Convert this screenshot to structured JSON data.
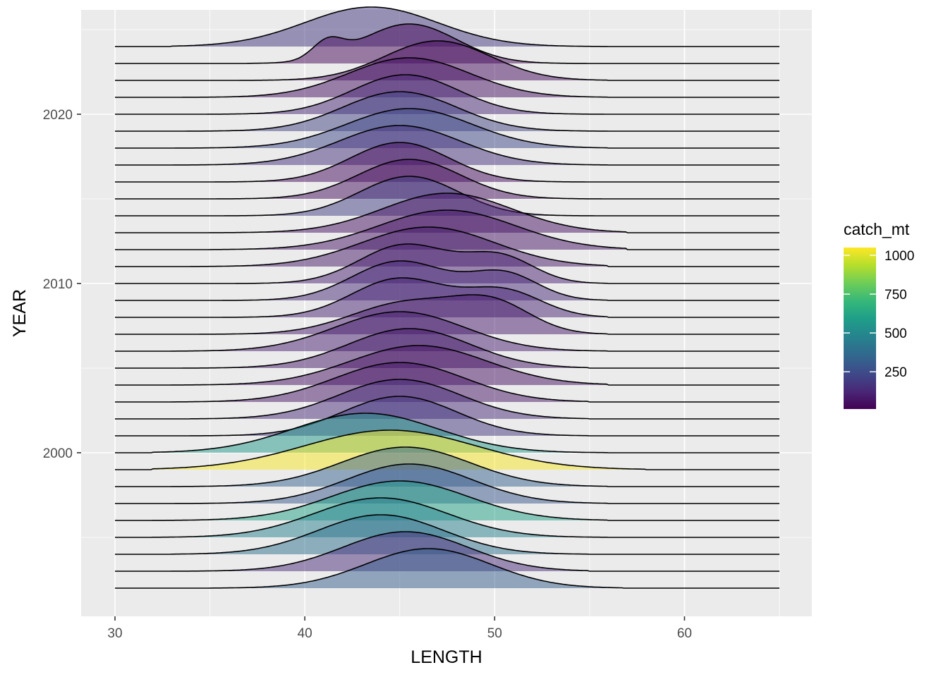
{
  "chart_data": {
    "type": "area",
    "subtype": "ridgeline",
    "xlabel": "LENGTH",
    "ylabel": "YEAR",
    "xlim": [
      28.3,
      67.0
    ],
    "x_ticks": [
      30,
      40,
      50,
      60
    ],
    "y_ticks": [
      2000,
      2010,
      2020
    ],
    "grid": true,
    "x_range": [
      30,
      65
    ],
    "legend": {
      "title": "catch_mt",
      "position": "right",
      "type": "colorbar",
      "palette": "viridis",
      "range": [
        10,
        1050
      ],
      "ticks": [
        250,
        500,
        750,
        1000
      ],
      "colors": [
        "#440154",
        "#482878",
        "#3E4A89",
        "#31688E",
        "#26828E",
        "#1F9E89",
        "#35B779",
        "#6DCD59",
        "#B4DE2C",
        "#FDE725"
      ]
    },
    "series": [
      {
        "year": 1992,
        "catch_mt": 320,
        "components": [
          {
            "mu": 46.5,
            "sd": 3.3,
            "w": 1.0
          }
        ],
        "tails": [
          35,
          56.8
        ]
      },
      {
        "year": 1993,
        "catch_mt": 140,
        "components": [
          {
            "mu": 45.3,
            "sd": 3.3,
            "w": 1.0
          }
        ],
        "tails": [
          33,
          55
        ]
      },
      {
        "year": 1994,
        "catch_mt": 390,
        "components": [
          {
            "mu": 44.0,
            "sd": 3.3,
            "w": 1.0
          }
        ],
        "tails": [
          33,
          55
        ]
      },
      {
        "year": 1995,
        "catch_mt": 470,
        "components": [
          {
            "mu": 44.0,
            "sd": 3.5,
            "w": 1.0
          }
        ],
        "tails": [
          32,
          56
        ]
      },
      {
        "year": 1996,
        "catch_mt": 600,
        "components": [
          {
            "mu": 45.0,
            "sd": 3.6,
            "w": 1.0
          }
        ],
        "tails": [
          32,
          56
        ]
      },
      {
        "year": 1997,
        "catch_mt": 290,
        "components": [
          {
            "mu": 45.5,
            "sd": 3.3,
            "w": 1.0
          }
        ],
        "tails": [
          33,
          56
        ]
      },
      {
        "year": 1998,
        "catch_mt": 330,
        "components": [
          {
            "mu": 45.3,
            "sd": 3.4,
            "w": 1.0
          }
        ],
        "tails": [
          33,
          56
        ]
      },
      {
        "year": 1999,
        "catch_mt": 1040,
        "components": [
          {
            "mu": 44.5,
            "sd": 4.5,
            "w": 1.0
          }
        ],
        "tails": [
          32,
          58
        ]
      },
      {
        "year": 2000,
        "catch_mt": 560,
        "components": [
          {
            "mu": 43.2,
            "sd": 3.8,
            "w": 1.0
          }
        ],
        "tails": [
          32,
          56
        ]
      },
      {
        "year": 2001,
        "catch_mt": 170,
        "components": [
          {
            "mu": 45.0,
            "sd": 3.0,
            "w": 1.0
          }
        ],
        "tails": [
          34,
          55
        ]
      },
      {
        "year": 2002,
        "catch_mt": 140,
        "components": [
          {
            "mu": 45.0,
            "sd": 3.2,
            "w": 1.0
          }
        ],
        "tails": [
          34,
          55
        ]
      },
      {
        "year": 2003,
        "catch_mt": 70,
        "components": [
          {
            "mu": 45.0,
            "sd": 3.4,
            "w": 1.0
          }
        ],
        "tails": [
          33,
          55
        ]
      },
      {
        "year": 2004,
        "catch_mt": 60,
        "components": [
          {
            "mu": 46.0,
            "sd": 3.6,
            "w": 1.0
          }
        ],
        "tails": [
          33,
          56
        ]
      },
      {
        "year": 2005,
        "catch_mt": 80,
        "components": [
          {
            "mu": 45.5,
            "sd": 3.2,
            "w": 1.0
          }
        ],
        "tails": [
          33,
          55
        ]
      },
      {
        "year": 2006,
        "catch_mt": 100,
        "components": [
          {
            "mu": 45.0,
            "sd": 3.4,
            "w": 1.0
          }
        ],
        "tails": [
          33,
          56
        ]
      },
      {
        "year": 2007,
        "catch_mt": 90,
        "components": [
          {
            "mu": 45.5,
            "sd": 3.0,
            "w": 0.55
          },
          {
            "mu": 50.0,
            "sd": 2.0,
            "w": 0.45
          }
        ],
        "tails": [
          34,
          56
        ]
      },
      {
        "year": 2008,
        "catch_mt": 110,
        "components": [
          {
            "mu": 45.0,
            "sd": 2.5,
            "w": 0.6
          },
          {
            "mu": 50.5,
            "sd": 2.0,
            "w": 0.4
          }
        ],
        "tails": [
          34,
          56
        ]
      },
      {
        "year": 2009,
        "catch_mt": 130,
        "components": [
          {
            "mu": 45.0,
            "sd": 2.5,
            "w": 0.6
          },
          {
            "mu": 50.5,
            "sd": 1.8,
            "w": 0.4
          }
        ],
        "tails": [
          34,
          56
        ]
      },
      {
        "year": 2010,
        "catch_mt": 100,
        "components": [
          {
            "mu": 45.3,
            "sd": 2.4,
            "w": 0.6
          },
          {
            "mu": 50.3,
            "sd": 1.8,
            "w": 0.4
          }
        ],
        "tails": [
          34,
          56
        ]
      },
      {
        "year": 2011,
        "catch_mt": 80,
        "components": [
          {
            "mu": 46.5,
            "sd": 3.5,
            "w": 1.0
          }
        ],
        "tails": [
          34,
          56
        ]
      },
      {
        "year": 2012,
        "catch_mt": 70,
        "components": [
          {
            "mu": 47.5,
            "sd": 3.6,
            "w": 1.0
          }
        ],
        "tails": [
          35,
          57
        ]
      },
      {
        "year": 2013,
        "catch_mt": 60,
        "components": [
          {
            "mu": 47.5,
            "sd": 3.4,
            "w": 1.0
          }
        ],
        "tails": [
          35,
          57
        ]
      },
      {
        "year": 2014,
        "catch_mt": 200,
        "components": [
          {
            "mu": 45.5,
            "sd": 2.6,
            "w": 1.0
          }
        ],
        "tails": [
          35,
          56
        ]
      },
      {
        "year": 2015,
        "catch_mt": 50,
        "components": [
          {
            "mu": 45.5,
            "sd": 2.7,
            "w": 1.0
          }
        ],
        "tails": [
          34,
          56
        ]
      },
      {
        "year": 2016,
        "catch_mt": 40,
        "components": [
          {
            "mu": 45.0,
            "sd": 2.6,
            "w": 1.0
          }
        ],
        "tails": [
          33,
          56
        ]
      },
      {
        "year": 2017,
        "catch_mt": 160,
        "components": [
          {
            "mu": 45.0,
            "sd": 3.2,
            "w": 1.0
          }
        ],
        "tails": [
          33,
          56
        ]
      },
      {
        "year": 2018,
        "catch_mt": 230,
        "components": [
          {
            "mu": 45.5,
            "sd": 3.3,
            "w": 1.0
          }
        ],
        "tails": [
          33,
          56
        ]
      },
      {
        "year": 2019,
        "catch_mt": 210,
        "components": [
          {
            "mu": 45.0,
            "sd": 3.0,
            "w": 1.0
          }
        ],
        "tails": [
          33,
          56
        ]
      },
      {
        "year": 2020,
        "catch_mt": 120,
        "components": [
          {
            "mu": 45.3,
            "sd": 2.8,
            "w": 1.0
          }
        ],
        "tails": [
          32,
          56
        ]
      },
      {
        "year": 2021,
        "catch_mt": 60,
        "components": [
          {
            "mu": 45.5,
            "sd": 3.2,
            "w": 1.0
          }
        ],
        "tails": [
          31,
          56
        ]
      },
      {
        "year": 2022,
        "catch_mt": 40,
        "components": [
          {
            "mu": 47.0,
            "sd": 2.8,
            "w": 1.0
          }
        ],
        "tails": [
          31,
          56
        ]
      },
      {
        "year": 2023,
        "catch_mt": 30,
        "components": [
          {
            "mu": 41.2,
            "sd": 0.8,
            "w": 0.3
          },
          {
            "mu": 45.5,
            "sd": 2.5,
            "w": 0.7
          }
        ],
        "tails": [
          37,
          55
        ]
      },
      {
        "year": 2024,
        "catch_mt": 170,
        "components": [
          {
            "mu": 43.5,
            "sd": 3.5,
            "w": 1.0
          }
        ],
        "tails": [
          33,
          56
        ]
      }
    ]
  }
}
